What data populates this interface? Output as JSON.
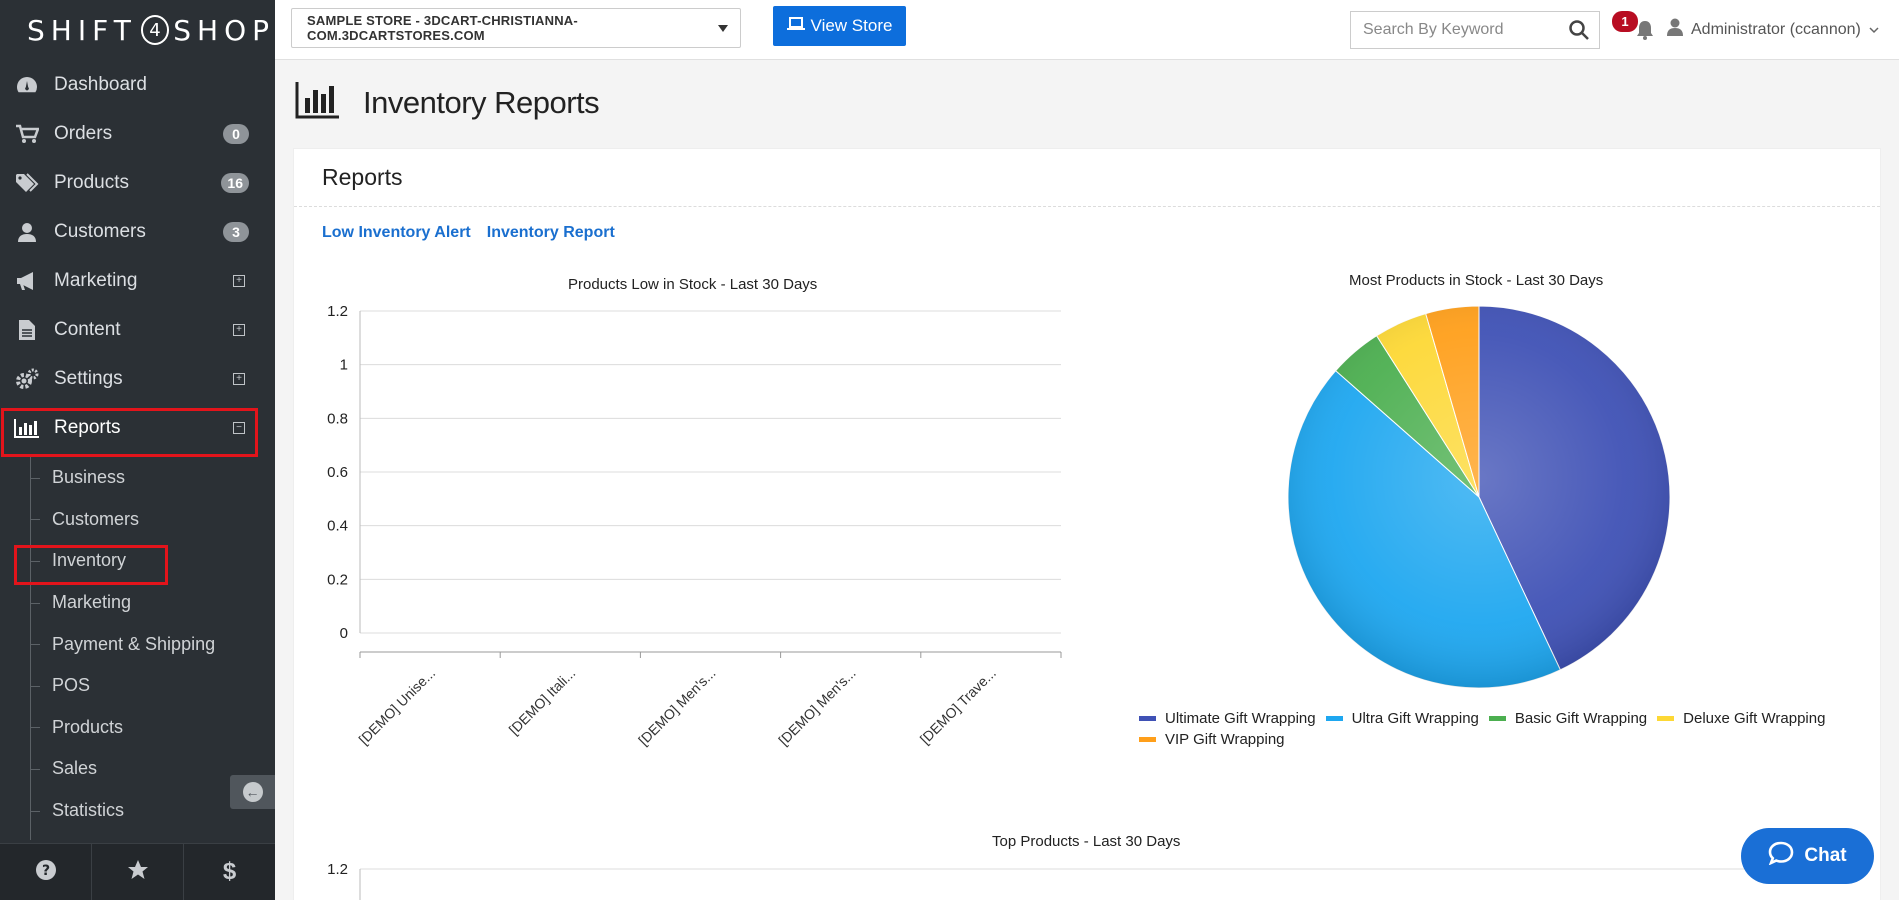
{
  "brand": {
    "logo_left": "SHIFT",
    "logo_four": "4",
    "logo_right": "SHOP"
  },
  "sidebar": {
    "items": [
      {
        "label": "Dashboard",
        "icon": "dashboard-icon"
      },
      {
        "label": "Orders",
        "icon": "cart-icon",
        "badge": "0"
      },
      {
        "label": "Products",
        "icon": "tags-icon",
        "badge": "16"
      },
      {
        "label": "Customers",
        "icon": "user-icon",
        "badge": "3"
      },
      {
        "label": "Marketing",
        "icon": "bullhorn-icon",
        "expand": "+"
      },
      {
        "label": "Content",
        "icon": "file-icon",
        "expand": "+"
      },
      {
        "label": "Settings",
        "icon": "gears-icon",
        "expand": "+"
      },
      {
        "label": "Reports",
        "icon": "bar-chart-icon",
        "expand": "−"
      }
    ],
    "reports_sub": [
      "Business",
      "Customers",
      "Inventory",
      "Marketing",
      "Payment & Shipping",
      "POS",
      "Products",
      "Sales",
      "Statistics"
    ],
    "footer": [
      "help-icon",
      "star-icon",
      "dollar-icon"
    ]
  },
  "topbar": {
    "store_selector": "SAMPLE STORE - 3DCART-CHRISTIANNA-COM.3DCARTSTORES.COM",
    "view_store": "View Store",
    "search_placeholder": "Search By Keyword",
    "notification_count": "1",
    "user": "Administrator (ccannon)"
  },
  "page": {
    "title": "Inventory Reports",
    "panel_title": "Reports",
    "links": [
      "Low Inventory Alert",
      "Inventory Report"
    ]
  },
  "colors": {
    "accent": "#0d6edc",
    "sidebar": "#2b3035",
    "highlight": "#e3141b"
  },
  "chart_data": [
    {
      "type": "bar",
      "title": "Products Low in Stock - Last 30 Days",
      "categories": [
        "[DEMO] Unise...",
        "[DEMO] Itali...",
        "[DEMO] Men's...",
        "[DEMO] Men's...",
        "[DEMO] Trave..."
      ],
      "values": [
        0,
        0,
        0,
        0,
        0
      ],
      "yticks": [
        "1.2",
        "1",
        "0.8",
        "0.6",
        "0.4",
        "0.2",
        "0"
      ],
      "ylim": [
        0,
        1.2
      ],
      "grid": true
    },
    {
      "type": "pie",
      "title": "Most Products in Stock - Last 30 Days",
      "legend_position": "bottom",
      "slices": [
        {
          "label": "Ultimate Gift Wrapping",
          "value": 43,
          "color": "#3f51b5"
        },
        {
          "label": "Ultra Gift Wrapping",
          "value": 43.5,
          "color": "#1ea7f0"
        },
        {
          "label": "Basic Gift Wrapping",
          "value": 4.5,
          "color": "#4caf50"
        },
        {
          "label": "Deluxe Gift Wrapping",
          "value": 4.5,
          "color": "#fdd835"
        },
        {
          "label": "VIP Gift Wrapping",
          "value": 4.5,
          "color": "#ff9f1a"
        }
      ]
    },
    {
      "type": "bar",
      "title": "Top Products - Last 30 Days",
      "yticks": [
        "1.2"
      ],
      "ylim": [
        0,
        1.2
      ]
    }
  ],
  "chat": {
    "label": "Chat"
  }
}
